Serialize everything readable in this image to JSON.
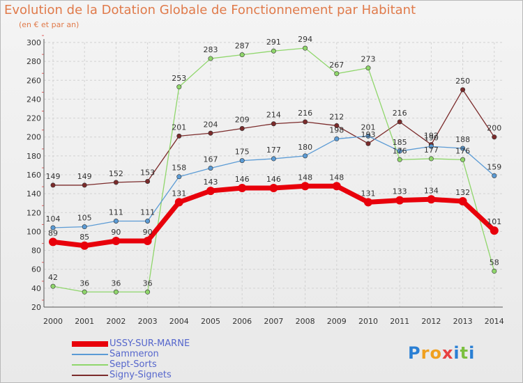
{
  "title": "Evolution de la Dotation Globale de Fonctionnement par Habitant",
  "subtitle": "(en € et par an)",
  "logo_text": "Proxiti",
  "chart_data": {
    "type": "line",
    "x": [
      "2000",
      "2001",
      "2002",
      "2003",
      "2004",
      "2005",
      "2006",
      "2007",
      "2008",
      "2009",
      "2010",
      "2011",
      "2012",
      "2013",
      "2014"
    ],
    "ylim": [
      20,
      300
    ],
    "yticks": [
      20,
      40,
      60,
      80,
      100,
      120,
      140,
      160,
      180,
      200,
      220,
      240,
      260,
      280,
      300
    ],
    "grid": true,
    "legend_position": "bottom-left",
    "series": [
      {
        "name": "USSY-SUR-MARNE",
        "color": "#e8000b",
        "width": 7,
        "values": [
          89,
          85,
          90,
          90,
          131,
          143,
          146,
          146,
          148,
          148,
          131,
          133,
          134,
          132,
          101
        ]
      },
      {
        "name": "Sammeron",
        "color": "#5b9bd5",
        "width": 1.3,
        "values": [
          104,
          105,
          111,
          111,
          158,
          167,
          175,
          177,
          180,
          198,
          201,
          185,
          190,
          188,
          159
        ]
      },
      {
        "name": "Sept-Sorts",
        "color": "#8fd66b",
        "width": 1.3,
        "values": [
          42,
          36,
          36,
          36,
          253,
          283,
          287,
          291,
          294,
          267,
          273,
          176,
          177,
          176,
          58
        ]
      },
      {
        "name": "Signy-Signets",
        "color": "#7b2b2b",
        "width": 1.3,
        "values": [
          149,
          149,
          152,
          153,
          201,
          204,
          209,
          214,
          216,
          212,
          193,
          216,
          192,
          250,
          200
        ]
      }
    ]
  }
}
